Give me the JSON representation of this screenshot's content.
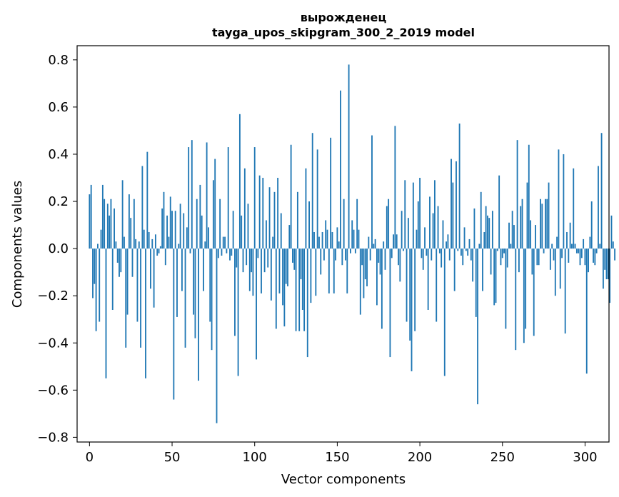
{
  "chart_data": {
    "type": "bar",
    "title": "вырожденец",
    "subtitle": "tayga_upos_skipgram_300_2_2019 model",
    "xlabel": "Vector components",
    "ylabel": "Components values",
    "xlim": [
      -7.5,
      314.5
    ],
    "ylim": [
      -0.82,
      0.86
    ],
    "xticks": [
      0,
      50,
      100,
      150,
      200,
      250,
      300
    ],
    "xtick_labels": [
      "0",
      "50",
      "100",
      "150",
      "200",
      "250",
      "300"
    ],
    "yticks": [
      -0.8,
      -0.6,
      -0.4,
      -0.2,
      0.0,
      0.2,
      0.4,
      0.6,
      0.8
    ],
    "ytick_labels": [
      "−0.8",
      "−0.6",
      "−0.4",
      "−0.2",
      "0.0",
      "0.2",
      "0.4",
      "0.6",
      "0.8"
    ],
    "grid": false,
    "bar_color": "#1f77b4",
    "values": [
      0.23,
      0.27,
      -0.21,
      -0.15,
      -0.35,
      0.02,
      -0.31,
      0.08,
      0.27,
      0.21,
      -0.55,
      0.19,
      0.14,
      0.21,
      -0.26,
      0.17,
      0.03,
      -0.06,
      -0.12,
      -0.1,
      0.29,
      0.05,
      -0.42,
      -0.28,
      0.23,
      0.13,
      -0.12,
      0.21,
      0.04,
      -0.31,
      0.03,
      -0.42,
      0.35,
      0.08,
      -0.55,
      0.41,
      0.07,
      -0.17,
      0.04,
      -0.25,
      0.06,
      -0.03,
      -0.02,
      0.01,
      0.17,
      0.24,
      -0.07,
      0.14,
      0.05,
      0.22,
      0.16,
      -0.64,
      0.16,
      -0.29,
      0.02,
      0.19,
      -0.18,
      0.15,
      -0.42,
      0.09,
      0.43,
      -0.02,
      0.46,
      -0.28,
      -0.38,
      0.21,
      -0.56,
      0.27,
      0.14,
      -0.18,
      0.03,
      0.45,
      0.09,
      -0.31,
      -0.43,
      0.29,
      0.38,
      -0.74,
      -0.04,
      0.21,
      -0.03,
      0.05,
      0.05,
      -0.02,
      0.43,
      -0.05,
      -0.03,
      0.16,
      -0.37,
      -0.08,
      -0.54,
      0.57,
      0.14,
      -0.1,
      0.34,
      -0.07,
      0.19,
      -0.18,
      -0.1,
      -0.2,
      0.43,
      -0.47,
      -0.04,
      0.31,
      -0.19,
      0.3,
      -0.1,
      0.12,
      -0.08,
      0.26,
      -0.22,
      0.05,
      0.24,
      -0.34,
      0.3,
      -0.19,
      0.15,
      -0.24,
      -0.33,
      -0.15,
      -0.16,
      0.1,
      0.44,
      -0.06,
      -0.09,
      -0.35,
      0.24,
      -0.35,
      -0.13,
      -0.26,
      -0.35,
      0.34,
      -0.46,
      0.2,
      -0.23,
      0.49,
      0.07,
      -0.2,
      0.42,
      0.05,
      -0.11,
      0.07,
      -0.05,
      0.12,
      0.08,
      -0.19,
      0.47,
      0.07,
      -0.19,
      -0.05,
      0.09,
      0.03,
      0.67,
      -0.07,
      0.21,
      -0.05,
      -0.19,
      0.78,
      -0.02,
      0.12,
      0.08,
      -0.02,
      0.21,
      0.08,
      -0.28,
      -0.07,
      -0.21,
      -0.13,
      -0.16,
      0.05,
      -0.05,
      0.48,
      0.02,
      0.04,
      -0.24,
      -0.06,
      -0.11,
      -0.34,
      0.03,
      -0.09,
      0.18,
      0.21,
      -0.46,
      -0.04,
      0.06,
      0.52,
      0.06,
      -0.07,
      -0.14,
      0.16,
      -0.01,
      0.29,
      -0.31,
      0.13,
      -0.39,
      -0.52,
      0.28,
      -0.35,
      0.08,
      0.2,
      0.3,
      -0.04,
      -0.09,
      0.09,
      -0.03,
      -0.26,
      0.22,
      -0.05,
      0.15,
      0.29,
      -0.31,
      0.18,
      -0.02,
      -0.08,
      0.12,
      -0.54,
      0.03,
      0.06,
      -0.05,
      0.38,
      0.28,
      -0.18,
      0.37,
      -0.01,
      0.53,
      -0.03,
      -0.07,
      0.09,
      -0.01,
      -0.03,
      0.04,
      -0.05,
      -0.14,
      0.17,
      -0.29,
      -0.66,
      0.02,
      0.24,
      -0.18,
      0.07,
      0.18,
      0.14,
      0.13,
      -0.11,
      0.16,
      -0.24,
      -0.23,
      -0.01,
      0.31,
      -0.07,
      -0.04,
      -0.02,
      -0.34,
      -0.08,
      0.11,
      0.02,
      0.16,
      0.1,
      -0.43,
      0.46,
      -0.1,
      0.18,
      0.21,
      -0.4,
      -0.34,
      0.28,
      0.44,
      0.12,
      -0.11,
      -0.37,
      0.1,
      -0.07,
      -0.07,
      0.21,
      0.19,
      -0.02,
      0.21,
      0.21,
      0.28,
      -0.09,
      0.02,
      -0.05,
      -0.2,
      0.05,
      0.42,
      -0.17,
      -0.04,
      0.4,
      -0.36,
      0.07,
      -0.06,
      0.11,
      0.02,
      0.34,
      0.02,
      -0.02,
      -0.02,
      -0.07,
      -0.04,
      0.04,
      -0.07,
      -0.53,
      -0.1,
      0.05,
      0.2,
      -0.06,
      -0.07,
      -0.02,
      0.35,
      0.02,
      0.49,
      -0.17,
      -0.09,
      -0.13,
      -0.13,
      -0.23,
      0.14,
      0.03,
      -0.05
    ]
  }
}
